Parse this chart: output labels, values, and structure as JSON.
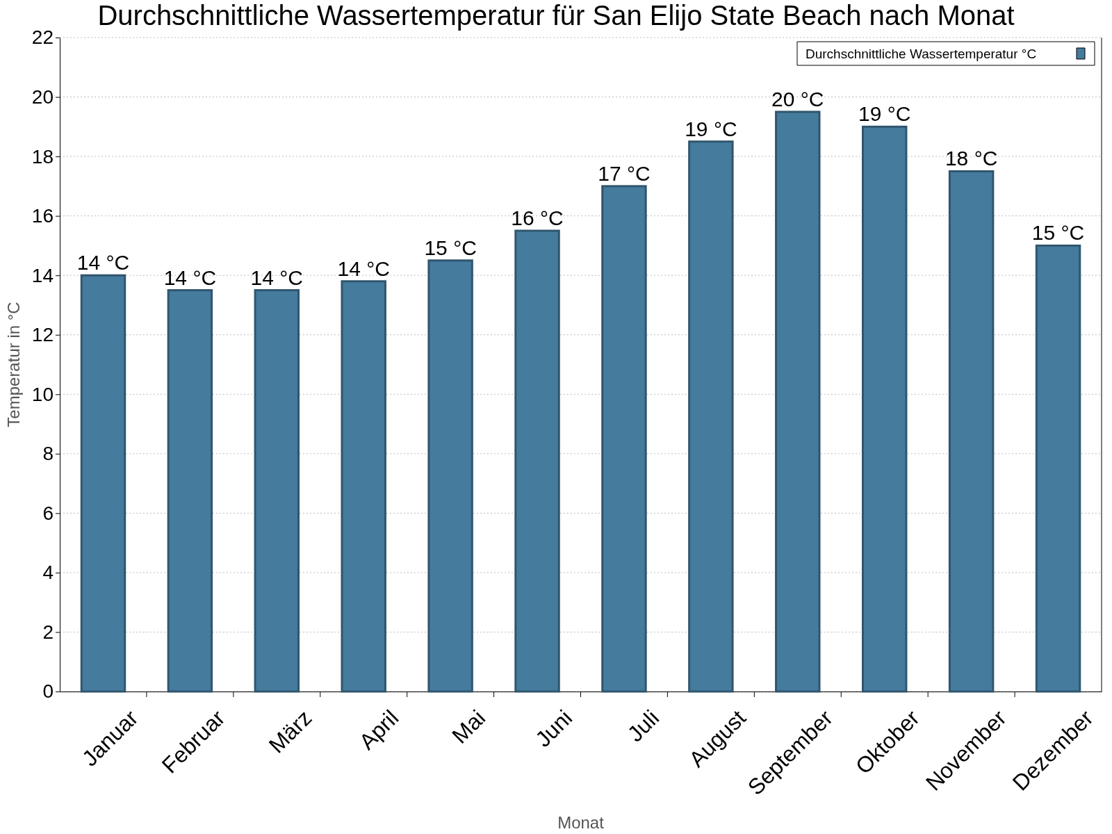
{
  "chart_data": {
    "type": "bar",
    "title": "Durchschnittliche Wassertemperatur für San Elijo State Beach nach Monat",
    "xlabel": "Monat",
    "ylabel": "Temperatur in °C",
    "categories": [
      "Januar",
      "Februar",
      "März",
      "April",
      "Mai",
      "Juni",
      "Juli",
      "August",
      "September",
      "Oktober",
      "November",
      "Dezember"
    ],
    "series": [
      {
        "name": "Durchschnittliche Wassertemperatur °C",
        "color": "#457b9d",
        "values": [
          14,
          13.5,
          13.5,
          13.8,
          14.5,
          15.5,
          17,
          18.5,
          19.5,
          19,
          17.5,
          15
        ],
        "value_labels": [
          "14 °C",
          "14 °C",
          "14 °C",
          "14 °C",
          "15 °C",
          "16 °C",
          "17 °C",
          "19 °C",
          "20 °C",
          "19 °C",
          "18 °C",
          "15 °C"
        ]
      }
    ],
    "ylim": [
      0,
      22
    ],
    "yticks": [
      0,
      2,
      4,
      6,
      8,
      10,
      12,
      14,
      16,
      18,
      20,
      22
    ],
    "grid": "y",
    "legend": "top right"
  }
}
